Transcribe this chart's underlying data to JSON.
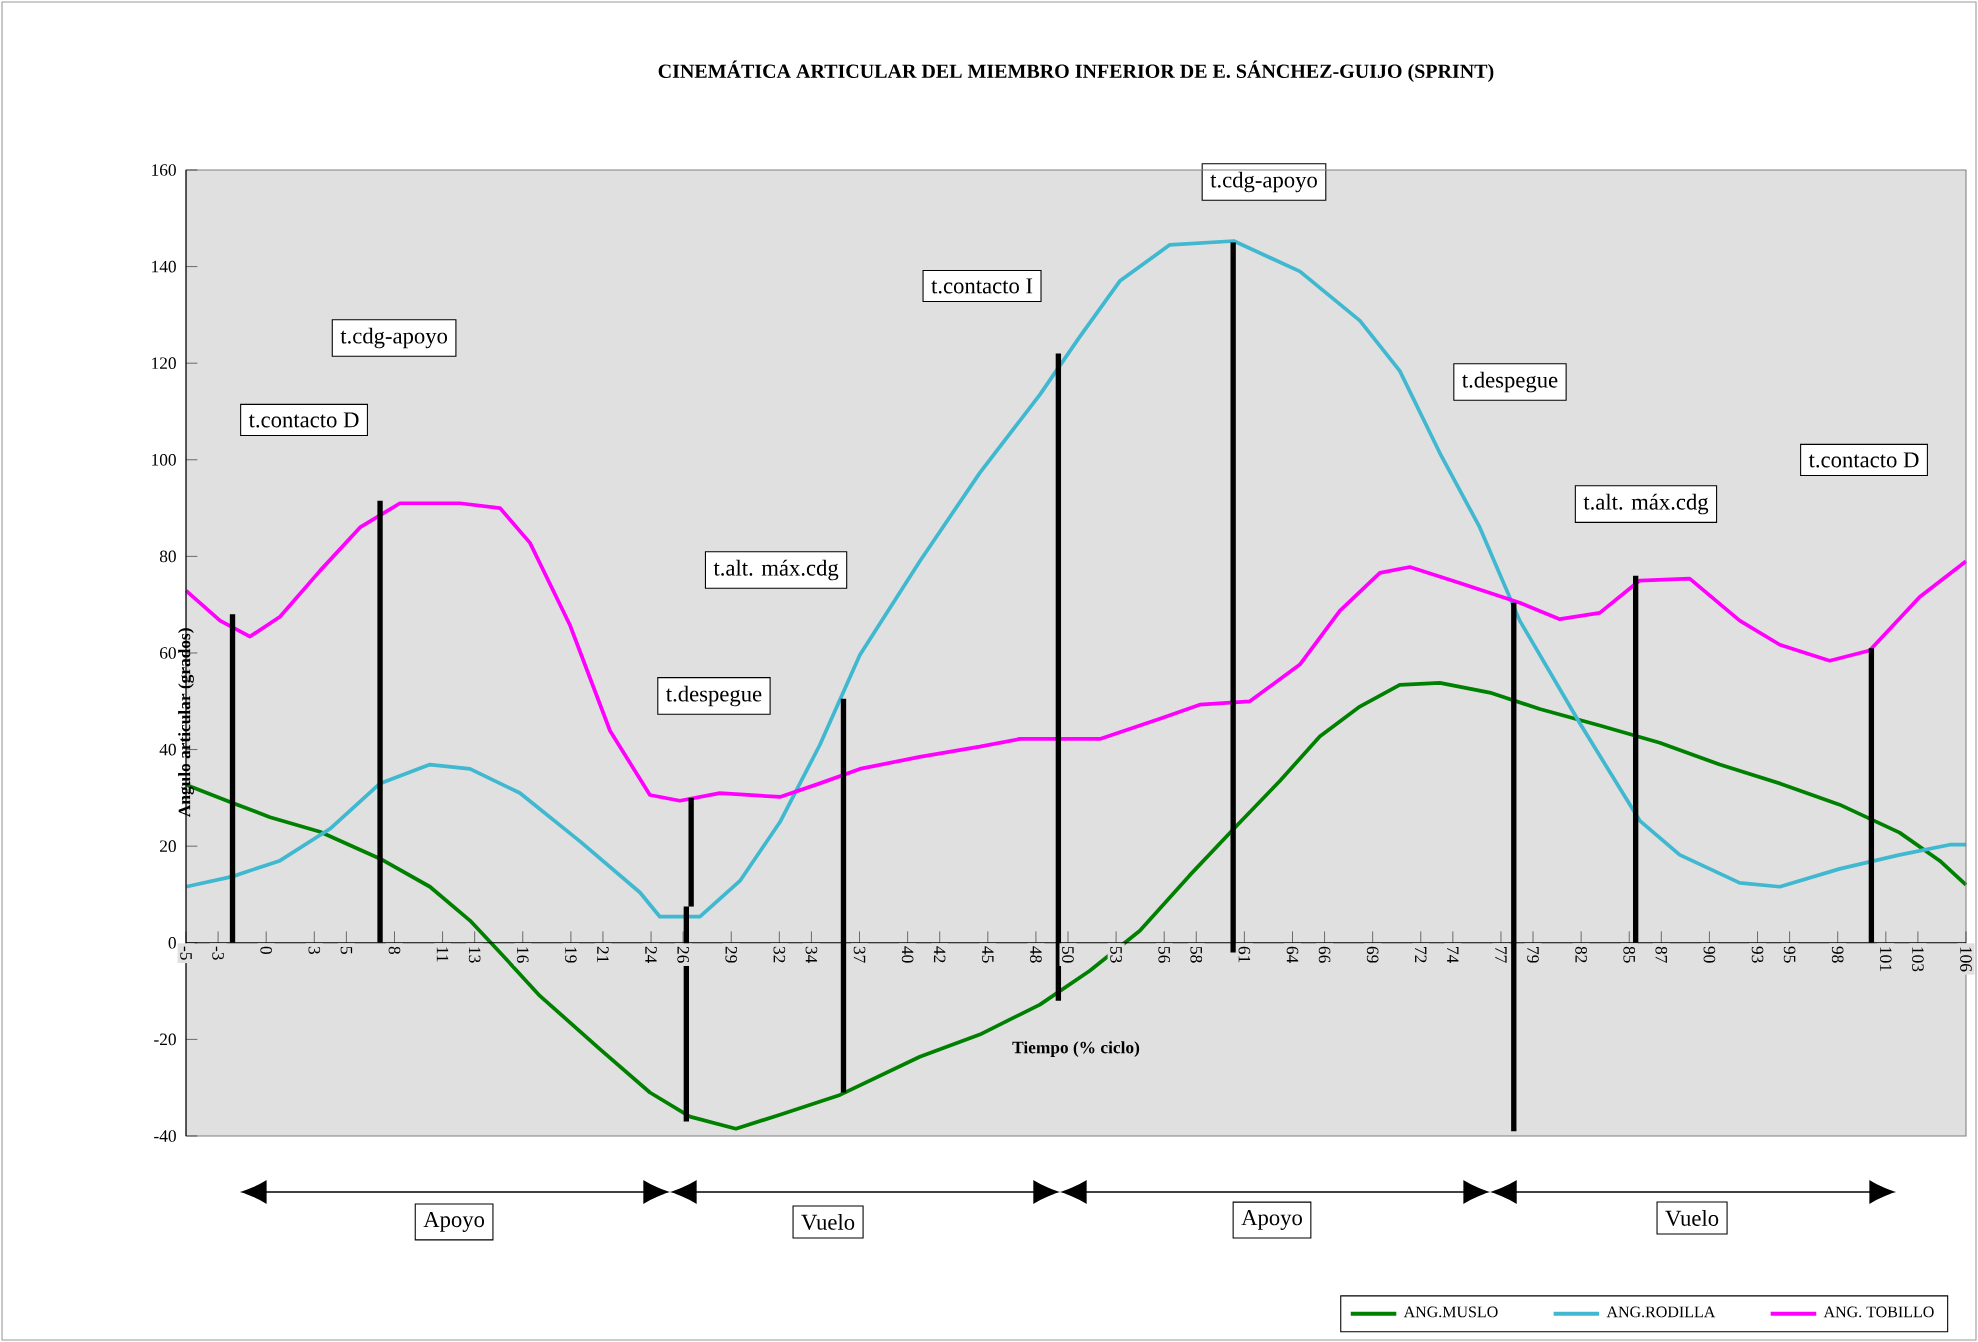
{
  "chart_data": {
    "type": "line",
    "title": "CINEMÁTICA ARTICULAR DEL MIEMBRO INFERIOR DE E. SÁNCHEZ-GUIJO (SPRINT)",
    "xlabel": "Tiempo (% ciclo)",
    "ylabel": "Angulo articular (grados)",
    "xlim": [
      -5,
      106
    ],
    "ylim": [
      -40,
      160
    ],
    "xticks": [
      -5,
      -3,
      0,
      3,
      5,
      8,
      11,
      13,
      16,
      19,
      21,
      24,
      26,
      29,
      32,
      34,
      37,
      40,
      42,
      45,
      48,
      50,
      53,
      56,
      58,
      61,
      64,
      66,
      69,
      72,
      74,
      77,
      79,
      82,
      85,
      87,
      90,
      93,
      95,
      98,
      101,
      103,
      106
    ],
    "yticks": [
      -40,
      -20,
      0,
      20,
      40,
      60,
      80,
      100,
      120,
      140,
      160
    ],
    "legend": "bottom right",
    "series": [
      {
        "name": "ANG.MUSLO",
        "color": "#008000",
        "x": [
          -5,
          -2.13,
          0.24,
          3.35,
          7.1,
          10.21,
          12.71,
          14.58,
          17.07,
          20.81,
          23.93,
          26.42,
          29.29,
          32.04,
          35.78,
          40.76,
          44.5,
          48.25,
          51.36,
          54.48,
          57.6,
          60.34,
          63.21,
          65.7,
          68.2,
          70.69,
          73.19,
          76.3,
          79.42,
          83.16,
          86.9,
          90.64,
          94.39,
          98.12,
          101.86,
          104.36,
          106
        ],
        "values": [
          32.7,
          29,
          26,
          23,
          17.4,
          11.6,
          4.6,
          -2,
          -11,
          -22,
          -31,
          -36,
          -38.5,
          -35.6,
          -31.5,
          -23.6,
          -19,
          -12.8,
          -5.8,
          2.5,
          14,
          23.6,
          33.5,
          42.7,
          48.9,
          53.4,
          53.8,
          51.8,
          48.4,
          45,
          41.4,
          36.9,
          33,
          28.6,
          22.8,
          17,
          12
        ]
      },
      {
        "name": "ANG.RODILLA",
        "color": "#40b8d0",
        "x": [
          -5,
          -2.13,
          0.86,
          3.98,
          7.1,
          10.21,
          12.71,
          15.82,
          19.57,
          23.31,
          24.55,
          27.05,
          29.54,
          32.04,
          34.53,
          37.02,
          40.76,
          44.5,
          48.25,
          50.74,
          53.23,
          56.35,
          60.34,
          64.46,
          68.2,
          70.69,
          73.19,
          75.68,
          78.17,
          81.91,
          85.65,
          88.15,
          91.89,
          94.39,
          98.12,
          101.86,
          104.99,
          106
        ],
        "values": [
          11.6,
          13.7,
          17,
          23.6,
          33,
          36.9,
          36,
          31,
          21,
          10.4,
          5.4,
          5.4,
          12.8,
          25,
          41,
          59.6,
          79,
          97.3,
          113.5,
          125.5,
          137,
          144.5,
          145.3,
          139,
          128.8,
          118.4,
          101.4,
          86,
          66.7,
          45.5,
          25.3,
          18.2,
          12.4,
          11.6,
          15.3,
          18.2,
          20.3,
          20.3
        ]
      },
      {
        "name": "ANG. TOBILLO",
        "color": "#ff00ff",
        "x": [
          -5,
          -2.88,
          -1.01,
          0.86,
          3.35,
          5.85,
          8.34,
          12.08,
          14.58,
          16.45,
          18.94,
          21.44,
          23.93,
          25.8,
          28.29,
          32.04,
          34.53,
          37.02,
          40.76,
          44.5,
          47.0,
          51.99,
          55.73,
          58.22,
          61.34,
          64.46,
          66.95,
          69.45,
          71.32,
          74.43,
          78.17,
          80.67,
          83.16,
          85.65,
          88.77,
          91.89,
          94.39,
          97.5,
          99.99,
          103.11,
          106
        ],
        "values": [
          72.9,
          66.7,
          63.4,
          67.5,
          77,
          86,
          91,
          91,
          90,
          82.8,
          65.8,
          43.9,
          30.6,
          29.4,
          31,
          30.2,
          33,
          36,
          38.5,
          40.6,
          42.2,
          42.2,
          46.4,
          49.3,
          50,
          57.6,
          68.7,
          76.6,
          77.8,
          74.5,
          70.4,
          67,
          68.3,
          75,
          75.4,
          66.7,
          61.7,
          58.4,
          60.5,
          71.6,
          79
        ]
      },
      {
        "color": "#000000",
        "x": [
          -2.1,
          -2.1
        ],
        "values": [
          0,
          68
        ]
      },
      {
        "color": "#000000",
        "x": [
          7.1,
          7.1
        ],
        "values": [
          0,
          91.5
        ]
      },
      {
        "color": "#000000",
        "x": [
          26.2,
          26.2
        ],
        "values": [
          -37,
          7.5
        ]
      },
      {
        "color": "#000000",
        "x": [
          26.5,
          26.5
        ],
        "values": [
          7.5,
          30
        ]
      },
      {
        "color": "#000000",
        "x": [
          36.0,
          36.0
        ],
        "values": [
          -31,
          50.5
        ]
      },
      {
        "color": "#000000",
        "x": [
          49.4,
          49.4
        ],
        "values": [
          -12,
          122
        ]
      },
      {
        "color": "#000000",
        "x": [
          60.3,
          60.3
        ],
        "values": [
          -2,
          145
        ]
      },
      {
        "color": "#000000",
        "x": [
          77.8,
          77.8
        ],
        "values": [
          -39,
          70.4
        ]
      },
      {
        "color": "#000000",
        "x": [
          85.4,
          85.4
        ],
        "values": [
          0,
          76
        ]
      },
      {
        "color": "#000000",
        "x": [
          100.1,
          100.1
        ],
        "values": [
          0,
          61
        ]
      }
    ],
    "annotations": [
      "t.contacto D",
      "t.cdg-apoyo",
      "t.despegue",
      "t.alt. máx.cdg",
      "t.contacto I",
      "t.cdg-apoyo",
      "t.despegue",
      "t.alt. máx.cdg",
      "t.contacto D",
      "Apoyo",
      "Vuelo",
      "Apoyo",
      "Vuelo"
    ]
  }
}
